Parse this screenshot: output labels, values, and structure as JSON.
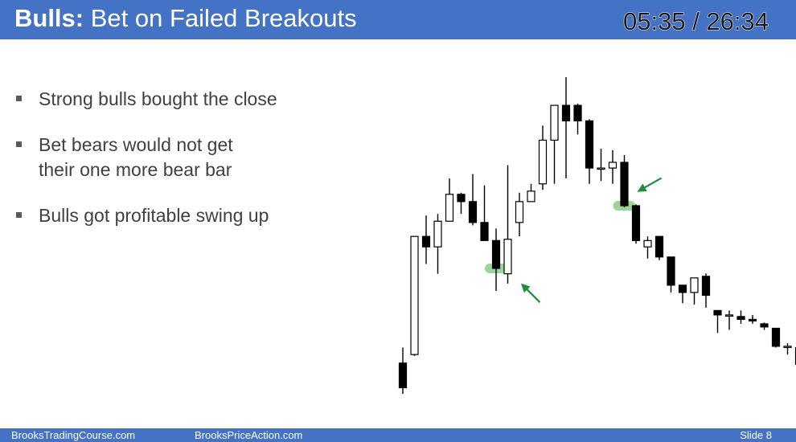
{
  "header": {
    "title_bold": "Bulls:",
    "title_rest": "Bet on Failed Breakouts",
    "timer": "05:35 / 26:34"
  },
  "bullets": [
    {
      "text": "Strong bulls bought the close"
    },
    {
      "text": "Bet bears would not get their one more bear bar"
    },
    {
      "text": "Bulls got profitable swing up"
    }
  ],
  "footer": {
    "left": "BrooksTradingCourse.com",
    "center": "BrooksPriceAction.com",
    "slide": "Slide  8"
  },
  "colors": {
    "header_bg": "#4472c4",
    "bullet_text": "#404040",
    "highlight": "#5cb85c",
    "arrow": "#1e8e3e"
  },
  "chart_data": {
    "type": "candlestick",
    "title": "",
    "xlabel": "",
    "ylabel": "",
    "ylim": [
      0,
      100
    ],
    "candles": [
      {
        "o": 9.7,
        "h": 14.6,
        "l": 0.0,
        "c": 1.9
      },
      {
        "o": 12.4,
        "h": 49.7,
        "l": 11.9,
        "c": 49.7
      },
      {
        "o": 49.7,
        "h": 56.3,
        "l": 41.0,
        "c": 46.4
      },
      {
        "o": 46.4,
        "h": 56.8,
        "l": 37.9,
        "c": 54.5
      },
      {
        "o": 54.5,
        "h": 68.0,
        "l": 54.5,
        "c": 63.0
      },
      {
        "o": 63.0,
        "h": 63.5,
        "l": 56.8,
        "c": 60.7
      },
      {
        "o": 60.7,
        "h": 69.4,
        "l": 53.2,
        "c": 54.1
      },
      {
        "o": 54.1,
        "h": 65.8,
        "l": 48.4,
        "c": 48.4
      },
      {
        "o": 48.4,
        "h": 52.2,
        "l": 32.5,
        "c": 39.6
      },
      {
        "o": 37.9,
        "h": 72.2,
        "l": 34.8,
        "c": 48.8
      },
      {
        "o": 54.1,
        "h": 63.5,
        "l": 49.7,
        "c": 60.7
      },
      {
        "o": 60.7,
        "h": 66.3,
        "l": 60.7,
        "c": 64.0
      },
      {
        "o": 66.3,
        "h": 84.7,
        "l": 64.4,
        "c": 80.1
      },
      {
        "o": 80.1,
        "h": 91.1,
        "l": 66.3,
        "c": 91.1
      },
      {
        "o": 91.1,
        "h": 100.0,
        "l": 68.0,
        "c": 86.2
      },
      {
        "o": 91.1,
        "h": 91.6,
        "l": 81.9,
        "c": 86.2
      },
      {
        "o": 86.2,
        "h": 86.7,
        "l": 66.3,
        "c": 71.3
      },
      {
        "o": 71.3,
        "h": 77.4,
        "l": 67.2,
        "c": 71.3
      },
      {
        "o": 71.3,
        "h": 76.9,
        "l": 66.3,
        "c": 73.1
      },
      {
        "o": 73.1,
        "h": 75.4,
        "l": 58.9,
        "c": 59.4
      },
      {
        "o": 59.4,
        "h": 59.8,
        "l": 47.4,
        "c": 48.4
      },
      {
        "o": 46.4,
        "h": 49.7,
        "l": 42.7,
        "c": 48.4
      },
      {
        "o": 49.7,
        "h": 49.7,
        "l": 42.2,
        "c": 43.2
      },
      {
        "o": 43.2,
        "h": 43.2,
        "l": 32.0,
        "c": 34.3
      },
      {
        "o": 34.3,
        "h": 34.3,
        "l": 28.6,
        "c": 32.0
      },
      {
        "o": 32.0,
        "h": 36.6,
        "l": 28.2,
        "c": 36.6
      },
      {
        "o": 37.1,
        "h": 38.0,
        "l": 27.2,
        "c": 31.1
      },
      {
        "o": 26.3,
        "h": 26.3,
        "l": 19.2,
        "c": 24.9
      },
      {
        "o": 24.9,
        "h": 26.3,
        "l": 20.2,
        "c": 24.9
      },
      {
        "o": 24.4,
        "h": 26.3,
        "l": 22.1,
        "c": 23.5
      },
      {
        "o": 23.5,
        "h": 24.9,
        "l": 22.1,
        "c": 23.0
      },
      {
        "o": 22.1,
        "h": 22.5,
        "l": 20.2,
        "c": 21.1
      },
      {
        "o": 20.7,
        "h": 20.7,
        "l": 14.6,
        "c": 15.0
      },
      {
        "o": 15.0,
        "h": 16.0,
        "l": 12.4,
        "c": 15.0
      },
      {
        "o": 14.6,
        "h": 15.0,
        "l": 5.6,
        "c": 9.3
      }
    ],
    "highlights": [
      {
        "candle": 8,
        "value": 39.6
      },
      {
        "candle": 19,
        "value": 59.4
      }
    ],
    "arrows": [
      {
        "candle": 9,
        "value": 36.0,
        "direction": "up-left"
      },
      {
        "candle": 19,
        "value": 60.0,
        "direction": "down-left"
      }
    ]
  }
}
